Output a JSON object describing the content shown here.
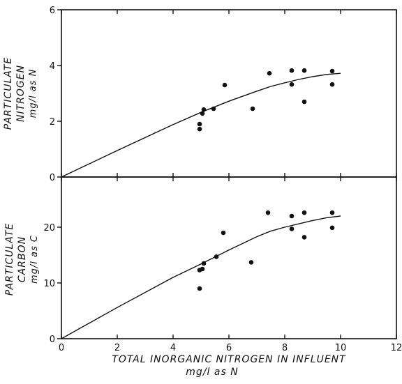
{
  "chart_data": [
    {
      "type": "scatter",
      "panel": "top",
      "ylabel": [
        "PARTICULATE",
        "NITROGEN",
        "mg/l as N"
      ],
      "xlim": [
        0,
        12
      ],
      "ylim": [
        0,
        6
      ],
      "yticks": [
        "0",
        "2",
        "4",
        "6"
      ],
      "series": [
        {
          "style": "points",
          "points": [
            {
              "x": 4.95,
              "y": 1.9
            },
            {
              "x": 4.95,
              "y": 1.72
            },
            {
              "x": 5.05,
              "y": 2.28
            },
            {
              "x": 5.1,
              "y": 2.42
            },
            {
              "x": 5.45,
              "y": 2.45
            },
            {
              "x": 5.85,
              "y": 3.3
            },
            {
              "x": 6.85,
              "y": 2.45
            },
            {
              "x": 7.45,
              "y": 3.72
            },
            {
              "x": 8.25,
              "y": 3.82
            },
            {
              "x": 8.25,
              "y": 3.32
            },
            {
              "x": 8.7,
              "y": 3.82
            },
            {
              "x": 8.7,
              "y": 2.7
            },
            {
              "x": 9.7,
              "y": 3.8
            },
            {
              "x": 9.7,
              "y": 3.32
            }
          ]
        },
        {
          "style": "curve",
          "points": [
            {
              "x": 0,
              "y": 0
            },
            {
              "x": 2,
              "y": 0.95
            },
            {
              "x": 4,
              "y": 1.88
            },
            {
              "x": 5,
              "y": 2.32
            },
            {
              "x": 6,
              "y": 2.72
            },
            {
              "x": 7,
              "y": 3.08
            },
            {
              "x": 7.5,
              "y": 3.25
            },
            {
              "x": 8,
              "y": 3.38
            },
            {
              "x": 8.5,
              "y": 3.5
            },
            {
              "x": 9,
              "y": 3.6
            },
            {
              "x": 9.5,
              "y": 3.68
            },
            {
              "x": 10,
              "y": 3.72
            }
          ]
        }
      ]
    },
    {
      "type": "scatter",
      "panel": "bottom",
      "xlabel": [
        "TOTAL INORGANIC NITROGEN IN INFLUENT",
        "mg/l as N"
      ],
      "ylabel": [
        "PARTICULATE",
        "CARBON",
        "mg/l as C"
      ],
      "xlim": [
        0,
        12
      ],
      "ylim": [
        0,
        29
      ],
      "xticks": [
        "0",
        "2",
        "4",
        "6",
        "8",
        "10",
        "12"
      ],
      "yticks": [
        "0",
        "10",
        "20"
      ],
      "series": [
        {
          "style": "points",
          "points": [
            {
              "x": 4.95,
              "y": 12.3
            },
            {
              "x": 4.95,
              "y": 9.0
            },
            {
              "x": 5.05,
              "y": 12.5
            },
            {
              "x": 5.1,
              "y": 13.5
            },
            {
              "x": 5.55,
              "y": 14.7
            },
            {
              "x": 5.8,
              "y": 19.0
            },
            {
              "x": 6.8,
              "y": 13.7
            },
            {
              "x": 7.4,
              "y": 22.6
            },
            {
              "x": 8.25,
              "y": 22.0
            },
            {
              "x": 8.25,
              "y": 19.7
            },
            {
              "x": 8.7,
              "y": 22.6
            },
            {
              "x": 8.7,
              "y": 18.2
            },
            {
              "x": 9.7,
              "y": 22.6
            },
            {
              "x": 9.7,
              "y": 19.9
            }
          ]
        },
        {
          "style": "curve",
          "points": [
            {
              "x": 0,
              "y": 0
            },
            {
              "x": 2,
              "y": 5.6
            },
            {
              "x": 4,
              "y": 11.0
            },
            {
              "x": 5,
              "y": 13.4
            },
            {
              "x": 6,
              "y": 15.9
            },
            {
              "x": 7,
              "y": 18.3
            },
            {
              "x": 7.5,
              "y": 19.3
            },
            {
              "x": 8,
              "y": 20.0
            },
            {
              "x": 8.5,
              "y": 20.6
            },
            {
              "x": 9,
              "y": 21.2
            },
            {
              "x": 9.5,
              "y": 21.7
            },
            {
              "x": 10,
              "y": 22.0
            }
          ]
        }
      ]
    }
  ]
}
